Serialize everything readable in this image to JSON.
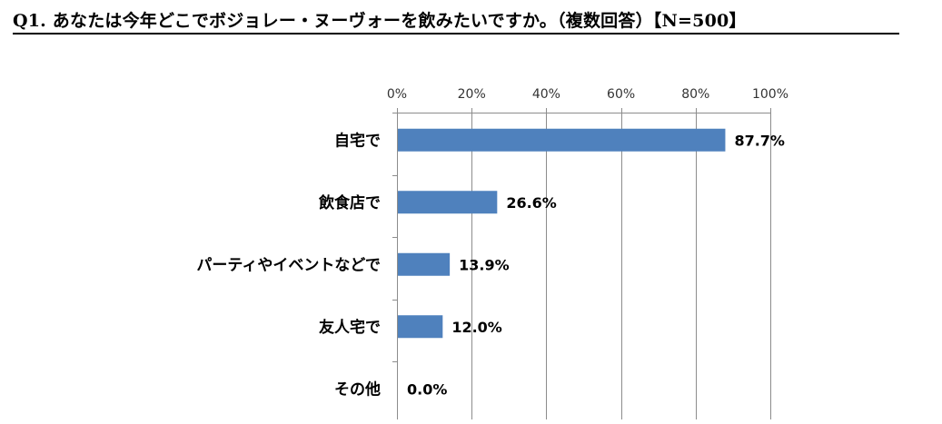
{
  "title": "Q1. あなたは今年どこでボジョレー・ヌーヴォーを飲みたいですか。（複数回答）【N=500】",
  "colors": {
    "bar": "#4f81bd",
    "grid": "#8c8c8c",
    "text": "#000000"
  },
  "chart_data": {
    "type": "bar",
    "orientation": "horizontal",
    "title": "Q1. あなたは今年どこでボジョレー・ヌーヴォーを飲みたいですか。（複数回答）【N=500】",
    "categories": [
      "自宅で",
      "飲食店で",
      "パーティやイベントなどで",
      "友人宅で",
      "その他"
    ],
    "values": [
      87.7,
      26.6,
      13.9,
      12.0,
      0.0
    ],
    "data_labels": [
      "87.7%",
      "26.6%",
      "13.9%",
      "12.0%",
      "0.0%"
    ],
    "xlim": [
      0,
      100
    ],
    "x_ticks": [
      0,
      20,
      40,
      60,
      80,
      100
    ],
    "x_tick_labels": [
      "0%",
      "20%",
      "40%",
      "60%",
      "80%",
      "100%"
    ],
    "x_axis_position": "top",
    "xlabel": "",
    "ylabel": "",
    "grid": true,
    "legend": "none"
  }
}
